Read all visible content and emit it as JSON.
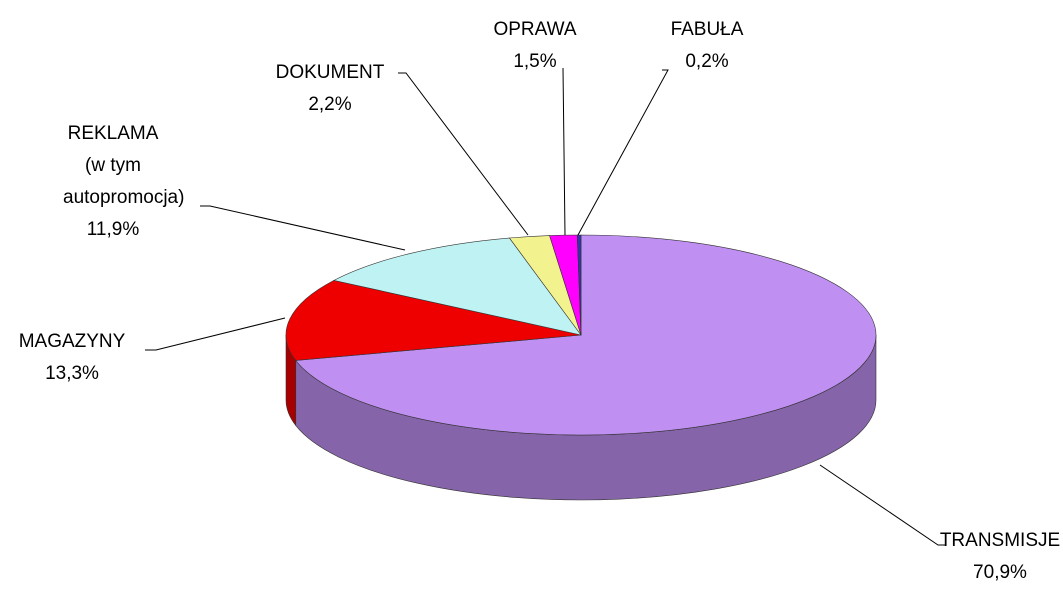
{
  "chart_data": {
    "type": "pie3d",
    "categories": [
      "TRANSMISJE",
      "MAGAZYNY",
      "REKLAMA (w tym autopromocja)",
      "DOKUMENT",
      "OPRAWA",
      "FABUŁA"
    ],
    "values": [
      70.9,
      13.3,
      11.9,
      2.2,
      1.5,
      0.2
    ],
    "value_labels": [
      "70,9%",
      "13,3%",
      "11,9%",
      "2,2%",
      "1,5%",
      "0,2%"
    ],
    "colors": [
      "#bf8ff2",
      "#ee0000",
      "#bff2f2",
      "#f2f28f",
      "#ff00ff",
      "#3333aa"
    ]
  }
}
